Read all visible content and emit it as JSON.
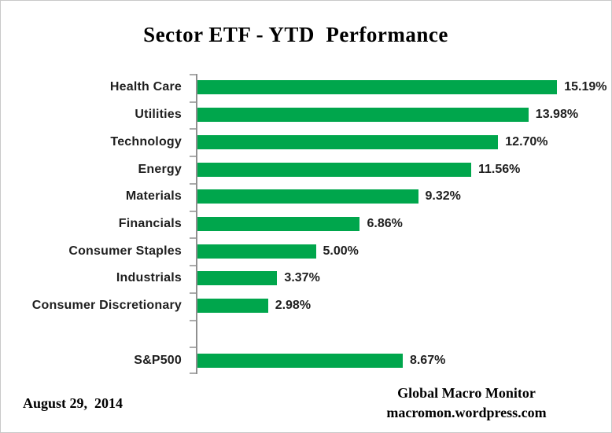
{
  "title": "Sector ETF - YTD  Performance",
  "footer": {
    "date": "August 29,  2014",
    "source_name": "Global Macro Monitor",
    "source_url": "macromon.wordpress.com"
  },
  "colors": {
    "bar": "#00a64c",
    "axis": "#8f8f8f",
    "tick": "#ababab",
    "text": "#1f1f1f",
    "frame_border": "#c9c9c9"
  },
  "chart_data": {
    "type": "bar",
    "orientation": "horizontal",
    "title": "Sector ETF - YTD  Performance",
    "categories": [
      "Health Care",
      "Utilities",
      "Technology",
      "Energy",
      "Materials",
      "Financials",
      "Consumer Staples",
      "Industrials",
      "Consumer Discretionary",
      "S&P500"
    ],
    "values": [
      15.19,
      13.98,
      12.7,
      11.56,
      9.32,
      6.86,
      5.0,
      3.37,
      2.98,
      8.67
    ],
    "value_labels": [
      "15.19%",
      "13.98%",
      "12.70%",
      "11.56%",
      "9.32%",
      "6.86%",
      "5.00%",
      "3.37%",
      "2.98%",
      "8.67%"
    ],
    "xlabel": "",
    "ylabel": "",
    "xlim": [
      0,
      17
    ],
    "grid": false,
    "legend": "none",
    "data_labels": "outside-end",
    "spacer_before_index": 9
  }
}
